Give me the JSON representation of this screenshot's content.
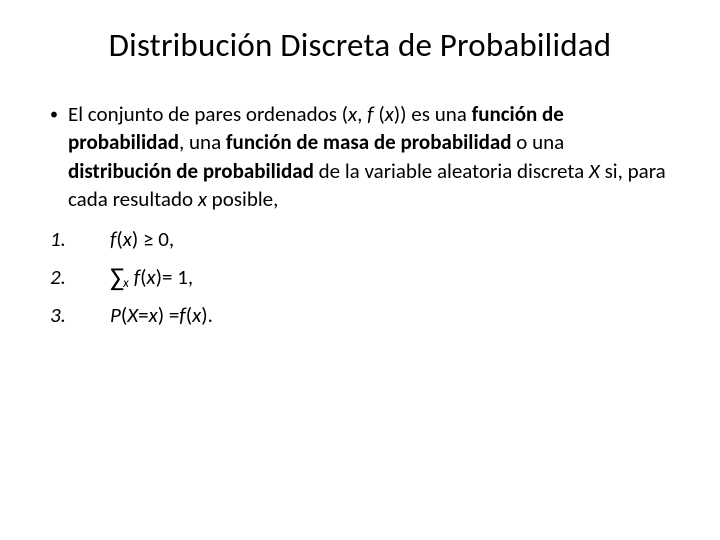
{
  "title": "Distribución Discreta de Probabilidad",
  "content": {
    "bullet_char": "•",
    "para": {
      "p1": "El conjunto de pares ordenados (",
      "x1": "x",
      "p2": ", ",
      "f1": "f ",
      "p3": "(",
      "x2": "x",
      "p4": ")) es una ",
      "b1": "función de probabilidad",
      "p5": ", una ",
      "b2": "función de masa de probabilidad",
      "p6": " o una ",
      "b3": "distribución de probabilidad",
      "p7": " de la variable aleatoria discreta ",
      "X1": "X",
      "p8": " si, para cada resultado ",
      "x3": "x",
      "p9": " posible,"
    }
  },
  "conditions": {
    "c1": {
      "num": "1.",
      "f": "f ",
      "open": "(",
      "x": "x ",
      "close": ") ≥ 0,"
    },
    "c2": {
      "num": "2.",
      "sigma": "∑",
      "sub": "x",
      "f": "f ",
      "open": "(",
      "x": "x ",
      "close": ") ",
      "eq": "= 1,"
    },
    "c3": {
      "num": "3.",
      "P": "P ",
      "open1": "(",
      "X": "X ",
      "eq": "= ",
      "x1": "x ",
      "close1": ") = ",
      "f": "f ",
      "open2": "(",
      "x2": "x ",
      "close2": ")."
    }
  },
  "styling": {
    "background_color": "#ffffff",
    "text_color": "#000000",
    "title_fontsize": 33,
    "body_fontsize": 21,
    "font_family": "Calibri"
  }
}
